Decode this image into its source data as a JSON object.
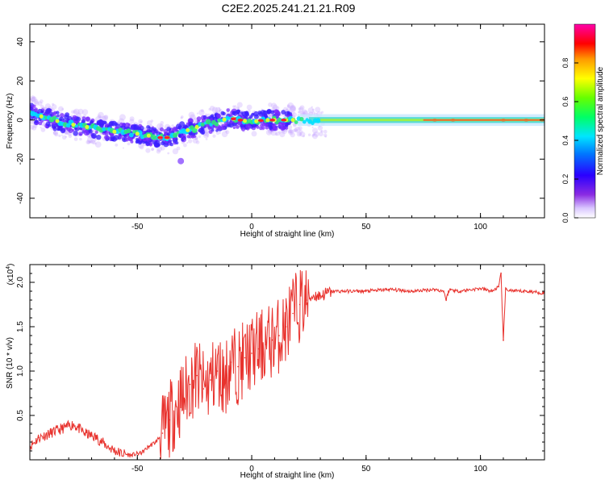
{
  "title": "C2E2.2025.241.21.21.R09",
  "colorbar": {
    "label": "Normalized spectral amplitude",
    "ticks": [
      "0.0",
      "0.2",
      "0.4",
      "0.6",
      "0.8"
    ],
    "tick_values": [
      0.0,
      0.2,
      0.4,
      0.6,
      0.8
    ]
  },
  "chart_data": [
    {
      "type": "heatmap",
      "title": "",
      "xlabel": "Height of straight line (km)",
      "ylabel": "Frequency (Hz)",
      "xlim": [
        -97,
        128
      ],
      "ylim": [
        -50,
        49
      ],
      "x_ticks": [
        -50,
        0,
        50,
        100
      ],
      "x_tick_labels": [
        "-50",
        "0",
        "50",
        "100"
      ],
      "y_ticks": [
        -40,
        -20,
        0,
        20,
        40
      ],
      "y_tick_labels": [
        "-40",
        "-20",
        "0",
        "20",
        "40"
      ],
      "ridge": {
        "x": [
          -97,
          -90,
          -80,
          -70,
          -60,
          -50,
          -45,
          -40,
          -35,
          -30,
          -25,
          -20,
          -15,
          -10,
          -5,
          0,
          5,
          10,
          20,
          30,
          50,
          80,
          100,
          128
        ],
        "freq": [
          4,
          1,
          -2,
          -4,
          -6,
          -7,
          -8,
          -9,
          -9,
          -6,
          -4,
          -2,
          -1,
          1,
          0,
          -1,
          0,
          0,
          0,
          -1,
          -1,
          0,
          0,
          0
        ]
      },
      "colorscale": "rainbow (0 = white/purple, 1 = magenta/red)"
    },
    {
      "type": "line",
      "title": "",
      "xlabel": "Height of straight line (km)",
      "ylabel": "SNR (10 * v/v)",
      "y_multiplier": "(x10",
      "y_multiplier_exp": "4",
      "y_multiplier_close": ")",
      "xlim": [
        -97,
        128
      ],
      "ylim": [
        0,
        2.2
      ],
      "x_ticks": [
        -50,
        0,
        50,
        100
      ],
      "x_tick_labels": [
        "-50",
        "0",
        "50",
        "100"
      ],
      "y_ticks": [
        0.5,
        1.0,
        1.5,
        2.0
      ],
      "y_tick_labels": [
        "0.5",
        "1.0",
        "1.5",
        "2.0"
      ],
      "series": [
        {
          "name": "SNR",
          "color": "#e8322d",
          "x": [
            -97,
            -93,
            -88,
            -83,
            -78,
            -73,
            -68,
            -63,
            -58,
            -53,
            -48,
            -45,
            -42,
            -39,
            -36,
            -33,
            -30,
            -27,
            -24,
            -21,
            -18,
            -15,
            -12,
            -9,
            -6,
            -3,
            0,
            3,
            6,
            9,
            12,
            15,
            18,
            21,
            24,
            27,
            30,
            33,
            36,
            40,
            50,
            60,
            70,
            80,
            84,
            85,
            86,
            87,
            90,
            100,
            105,
            108,
            109,
            110,
            111,
            115,
            120,
            128
          ],
          "y": [
            0.15,
            0.25,
            0.3,
            0.35,
            0.4,
            0.3,
            0.25,
            0.15,
            0.08,
            0.05,
            0.08,
            0.15,
            0.2,
            0.3,
            0.45,
            0.6,
            0.7,
            0.85,
            0.95,
            0.8,
            0.9,
            1.0,
            0.9,
            1.1,
            1.05,
            1.15,
            1.2,
            1.25,
            1.3,
            1.35,
            1.4,
            1.5,
            1.65,
            1.75,
            1.8,
            1.85,
            1.85,
            1.88,
            1.9,
            1.9,
            1.9,
            1.92,
            1.9,
            1.92,
            1.9,
            1.8,
            1.9,
            1.92,
            1.9,
            1.93,
            1.9,
            1.95,
            2.1,
            1.35,
            1.92,
            1.9,
            1.9,
            1.88
          ]
        }
      ]
    }
  ]
}
